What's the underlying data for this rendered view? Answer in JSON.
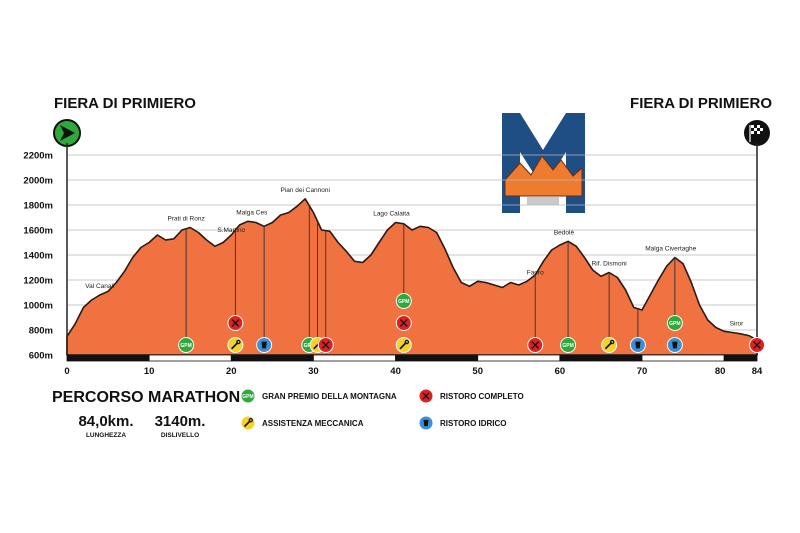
{
  "title_left": "FIERA DI PRIMIERO",
  "title_right": "FIERA DI PRIMIERO",
  "course_title": "PERCORSO MARATHON",
  "stats": [
    {
      "value": "84,0km.",
      "label": "LUNGHEZZA"
    },
    {
      "value": "3140m.",
      "label": "DISLIVELLO"
    }
  ],
  "legend": [
    {
      "type": "gpm",
      "label": "GRAN PREMIO DELLA MONTAGNA"
    },
    {
      "type": "ristoro",
      "label": "RISTORO COMPLETO"
    },
    {
      "type": "assistenza",
      "label": "ASSISTENZA MECCANICA"
    },
    {
      "type": "idrico",
      "label": "RISTORO IDRICO"
    }
  ],
  "icons": {
    "start": "start-arrow-icon",
    "finish": "checkered-flag-icon",
    "logo": "m-mountain-logo-icon",
    "gpm": "gpm-circle-icon",
    "ristoro": "fork-knife-icon",
    "assistenza": "wrench-icon",
    "idrico": "water-cup-icon"
  },
  "colors": {
    "profile_fill": "#f07241",
    "profile_stroke": "#2a1a14",
    "gpm": "#2eaa3c",
    "ristoro": "#e02020",
    "assistenza": "#f5d224",
    "idrico": "#3a8fd6",
    "start": "#2eaa3c",
    "finish": "#111111",
    "logo_blue": "#1f4e85",
    "logo_orange": "#ef7b2f"
  },
  "chart_data": {
    "type": "area",
    "xlabel": "",
    "ylabel": "",
    "xlim": [
      0,
      84
    ],
    "ylim": [
      600,
      2200
    ],
    "x_ticks": [
      "0",
      "10",
      "20",
      "30",
      "40",
      "50",
      "60",
      "70",
      "80",
      "84"
    ],
    "y_ticks": [
      "600m",
      "800m",
      "1000m",
      "1200m",
      "1400m",
      "1600m",
      "1800m",
      "2000m",
      "2200m"
    ],
    "series": [
      {
        "x": [
          0,
          1,
          2,
          3,
          4,
          5,
          6,
          7,
          8,
          9,
          10,
          11,
          12,
          13,
          14,
          15,
          16,
          17,
          18,
          19,
          20,
          21,
          22,
          23,
          24,
          25,
          26,
          27,
          28,
          29,
          30,
          31,
          32,
          33,
          34,
          35,
          36,
          37,
          38,
          39,
          40,
          41,
          42,
          43,
          44,
          45,
          46,
          47,
          48,
          49,
          50,
          51,
          52,
          53,
          54,
          55,
          56,
          57,
          58,
          59,
          60,
          61,
          62,
          63,
          64,
          65,
          66,
          67,
          68,
          69,
          70,
          71,
          72,
          73,
          74,
          75,
          76,
          77,
          78,
          79,
          80,
          81,
          82,
          83,
          84
        ],
        "y": [
          750,
          850,
          980,
          1040,
          1080,
          1110,
          1180,
          1270,
          1380,
          1460,
          1500,
          1560,
          1520,
          1530,
          1600,
          1620,
          1580,
          1520,
          1470,
          1500,
          1560,
          1640,
          1670,
          1660,
          1630,
          1660,
          1720,
          1740,
          1790,
          1850,
          1740,
          1600,
          1590,
          1500,
          1430,
          1350,
          1340,
          1400,
          1500,
          1600,
          1660,
          1650,
          1600,
          1630,
          1620,
          1580,
          1450,
          1300,
          1180,
          1150,
          1190,
          1180,
          1160,
          1140,
          1180,
          1160,
          1190,
          1240,
          1350,
          1440,
          1480,
          1510,
          1470,
          1380,
          1280,
          1230,
          1260,
          1220,
          1120,
          980,
          960,
          1080,
          1200,
          1310,
          1380,
          1330,
          1180,
          1000,
          880,
          820,
          790,
          780,
          770,
          755,
          720
        ]
      }
    ],
    "places": [
      {
        "name": "Val Canali",
        "x": 4,
        "y": 1080
      },
      {
        "name": "Prati di Ronz",
        "x": 14.5,
        "y": 1620
      },
      {
        "name": "S.Martino",
        "x": 20,
        "y": 1530
      },
      {
        "name": "Malga Ces",
        "x": 22.5,
        "y": 1670
      },
      {
        "name": "Pian dei Cannoni",
        "x": 29,
        "y": 1850
      },
      {
        "name": "Lago Calaita",
        "x": 39.5,
        "y": 1660
      },
      {
        "name": "Faoro",
        "x": 57,
        "y": 1190
      },
      {
        "name": "Bedolè",
        "x": 60.5,
        "y": 1510
      },
      {
        "name": "Rif. Dismoni",
        "x": 66,
        "y": 1260
      },
      {
        "name": "Malga Civertaghe",
        "x": 73.5,
        "y": 1380
      },
      {
        "name": "Siror",
        "x": 81.5,
        "y": 780
      }
    ],
    "markers": [
      {
        "km": 14.5,
        "items": [
          "gpm"
        ]
      },
      {
        "km": 20.5,
        "items": [
          "ristoro",
          "assistenza"
        ]
      },
      {
        "km": 24,
        "items": [
          "idrico"
        ]
      },
      {
        "km": 29.5,
        "items": [
          "gpm"
        ]
      },
      {
        "km": 30.5,
        "items": [
          "assistenza"
        ]
      },
      {
        "km": 31.5,
        "items": [
          "ristoro"
        ]
      },
      {
        "km": 41,
        "items": [
          "gpm",
          "ristoro",
          "assistenza"
        ]
      },
      {
        "km": 57,
        "items": [
          "ristoro"
        ]
      },
      {
        "km": 61,
        "items": [
          "gpm"
        ]
      },
      {
        "km": 66,
        "items": [
          "assistenza"
        ]
      },
      {
        "km": 69.5,
        "items": [
          "idrico"
        ]
      },
      {
        "km": 74,
        "items": [
          "gpm",
          "idrico"
        ]
      },
      {
        "km": 84,
        "items": [
          "ristoro"
        ]
      }
    ],
    "gpm_label": "GPM"
  }
}
